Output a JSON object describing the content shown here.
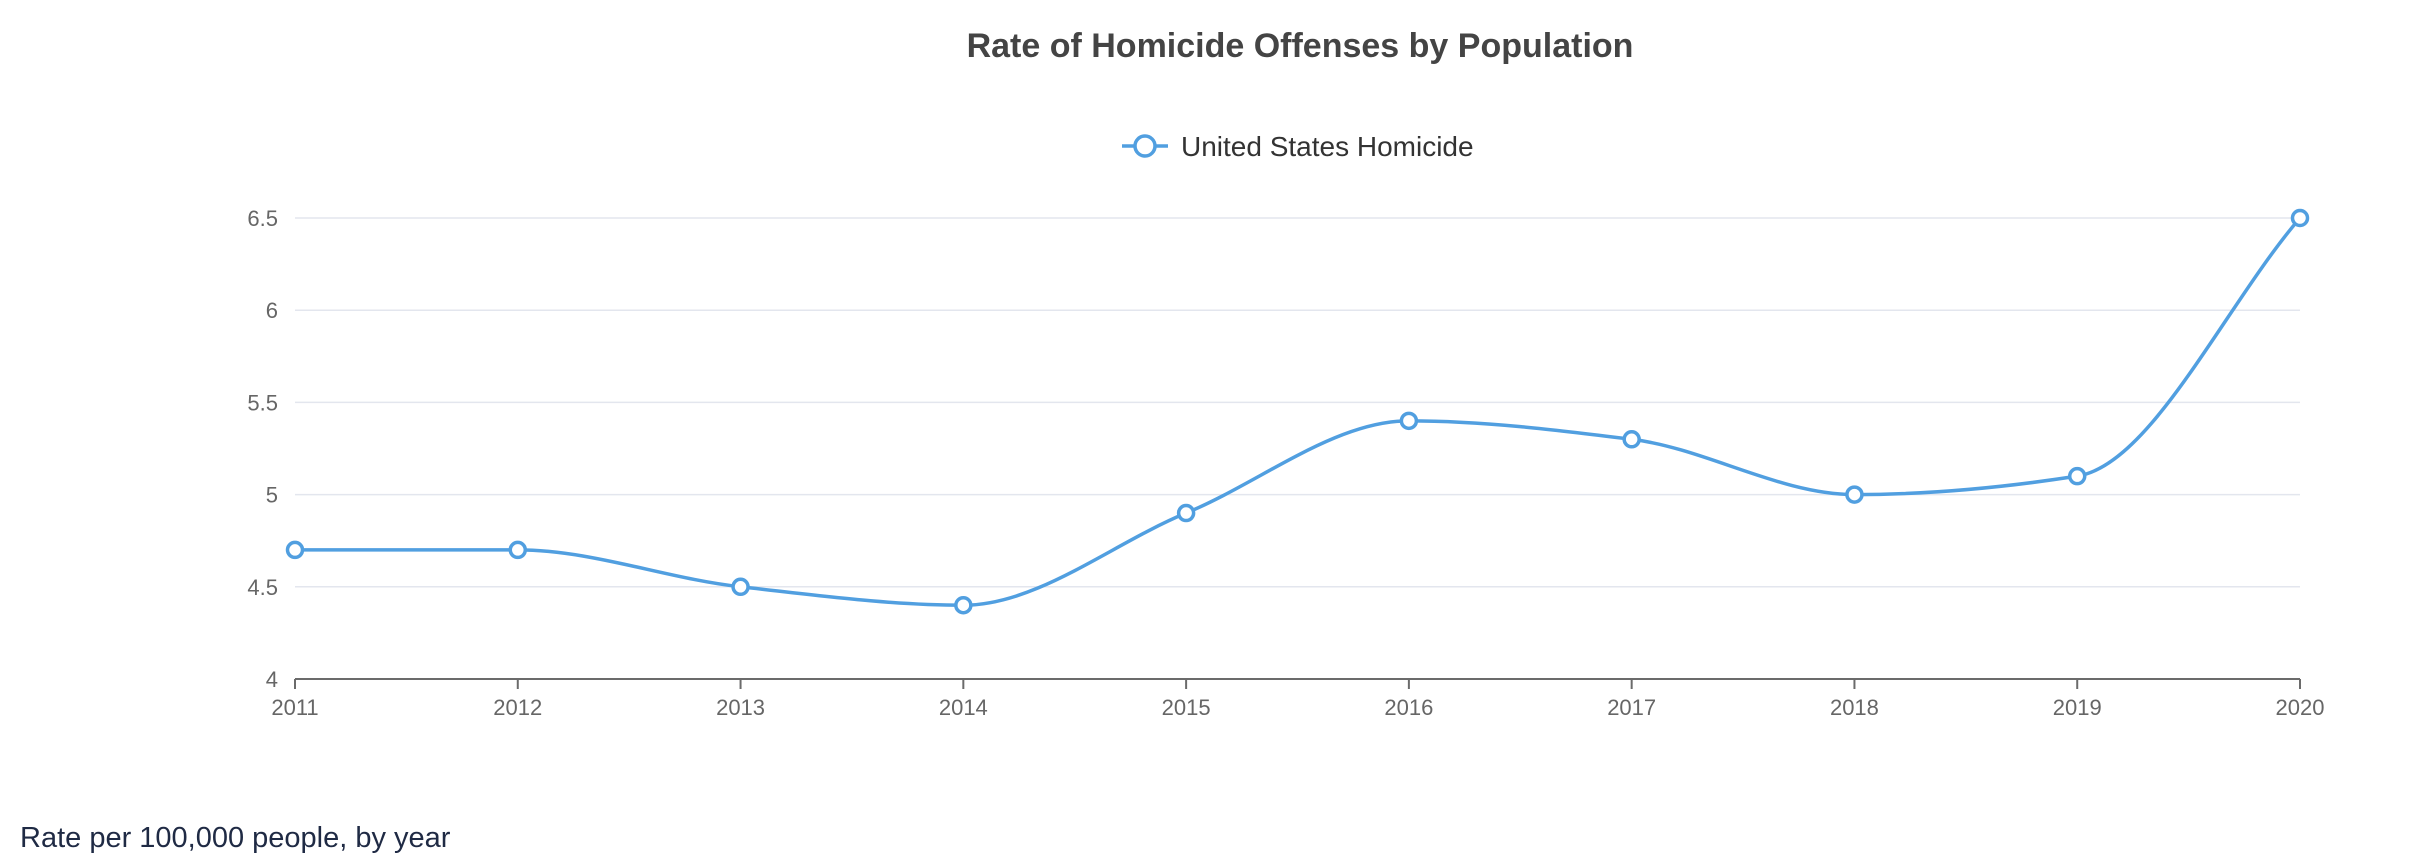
{
  "colors": {
    "series": "#519FE0",
    "grid": "#E3E6EE",
    "axis": "#6B6B6B",
    "title": "#444444",
    "caption": "#1F2A44"
  },
  "chart_data": {
    "type": "line",
    "title": "Rate of Homicide Offenses by Population",
    "categories": [
      "2011",
      "2012",
      "2013",
      "2014",
      "2015",
      "2016",
      "2017",
      "2018",
      "2019",
      "2020"
    ],
    "series": [
      {
        "name": "United States Homicide",
        "values": [
          4.7,
          4.7,
          4.5,
          4.4,
          4.9,
          5.4,
          5.3,
          5.0,
          5.1,
          6.5
        ]
      }
    ],
    "yticks": [
      "4",
      "4.5",
      "5",
      "5.5",
      "6",
      "6.5"
    ],
    "ylim": [
      4,
      6.5
    ],
    "xlabel": "",
    "ylabel": "",
    "grid": true,
    "legend_position": "top-center",
    "line_style": "smooth"
  },
  "caption": "Rate per 100,000 people, by year"
}
